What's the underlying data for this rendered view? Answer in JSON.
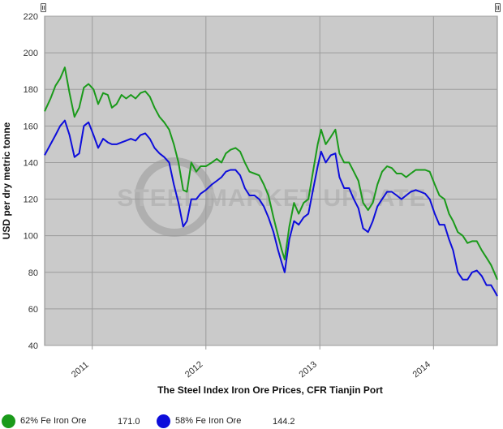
{
  "chart_data": {
    "type": "line",
    "title": "The Steel Index Iron Ore Prices, CFR Tianjin Port",
    "ylabel": "USD per dry metric tonne",
    "xlabel": "The Steel Index Iron Ore Prices, CFR Tianjin Port",
    "ylim": [
      40,
      220
    ],
    "yticks": [
      40,
      60,
      80,
      100,
      120,
      140,
      160,
      180,
      200,
      220
    ],
    "xlim": [
      "2010-08-01",
      "2014-07-25"
    ],
    "xticks": [
      {
        "label": "2011",
        "date": "2011-01-01"
      },
      {
        "label": "2012",
        "date": "2012-01-01"
      },
      {
        "label": "2013",
        "date": "2013-01-01"
      },
      {
        "label": "2014",
        "date": "2014-01-01"
      }
    ],
    "grid": true,
    "legend_placement": "bottom",
    "watermark": "STEEL MARKET UPDATE",
    "series": [
      {
        "name": "62% Fe Iron Ore",
        "color": "#1a9a1a",
        "legend_value": "171.0",
        "points": [
          [
            "2010-08-01",
            168
          ],
          [
            "2010-08-20",
            175
          ],
          [
            "2010-09-05",
            182
          ],
          [
            "2010-09-20",
            186
          ],
          [
            "2010-10-05",
            192
          ],
          [
            "2010-10-20",
            178
          ],
          [
            "2010-11-05",
            165
          ],
          [
            "2010-11-20",
            170
          ],
          [
            "2010-12-05",
            181
          ],
          [
            "2010-12-20",
            183
          ],
          [
            "2011-01-05",
            180
          ],
          [
            "2011-01-20",
            172
          ],
          [
            "2011-02-05",
            178
          ],
          [
            "2011-02-20",
            177
          ],
          [
            "2011-03-05",
            170
          ],
          [
            "2011-03-20",
            172
          ],
          [
            "2011-04-05",
            177
          ],
          [
            "2011-04-20",
            175
          ],
          [
            "2011-05-05",
            177
          ],
          [
            "2011-05-20",
            175
          ],
          [
            "2011-06-05",
            178
          ],
          [
            "2011-06-20",
            179
          ],
          [
            "2011-07-05",
            176
          ],
          [
            "2011-07-20",
            170
          ],
          [
            "2011-08-05",
            165
          ],
          [
            "2011-08-20",
            162
          ],
          [
            "2011-09-05",
            158
          ],
          [
            "2011-09-20",
            150
          ],
          [
            "2011-10-05",
            140
          ],
          [
            "2011-10-20",
            125
          ],
          [
            "2011-11-01",
            124
          ],
          [
            "2011-11-15",
            140
          ],
          [
            "2011-12-01",
            135
          ],
          [
            "2011-12-15",
            138
          ],
          [
            "2012-01-01",
            138
          ],
          [
            "2012-01-20",
            140
          ],
          [
            "2012-02-05",
            142
          ],
          [
            "2012-02-20",
            140
          ],
          [
            "2012-03-05",
            145
          ],
          [
            "2012-03-20",
            147
          ],
          [
            "2012-04-05",
            148
          ],
          [
            "2012-04-20",
            146
          ],
          [
            "2012-05-05",
            140
          ],
          [
            "2012-05-20",
            135
          ],
          [
            "2012-06-05",
            134
          ],
          [
            "2012-06-20",
            133
          ],
          [
            "2012-07-05",
            128
          ],
          [
            "2012-07-20",
            122
          ],
          [
            "2012-08-05",
            110
          ],
          [
            "2012-08-20",
            100
          ],
          [
            "2012-09-01",
            92
          ],
          [
            "2012-09-10",
            87
          ],
          [
            "2012-09-25",
            105
          ],
          [
            "2012-10-10",
            118
          ],
          [
            "2012-10-25",
            112
          ],
          [
            "2012-11-10",
            118
          ],
          [
            "2012-11-25",
            120
          ],
          [
            "2012-12-10",
            135
          ],
          [
            "2012-12-25",
            150
          ],
          [
            "2013-01-05",
            158
          ],
          [
            "2013-01-20",
            150
          ],
          [
            "2013-02-05",
            154
          ],
          [
            "2013-02-20",
            158
          ],
          [
            "2013-03-05",
            145
          ],
          [
            "2013-03-20",
            140
          ],
          [
            "2013-04-05",
            140
          ],
          [
            "2013-04-20",
            135
          ],
          [
            "2013-05-05",
            130
          ],
          [
            "2013-05-20",
            118
          ],
          [
            "2013-06-05",
            114
          ],
          [
            "2013-06-20",
            118
          ],
          [
            "2013-07-05",
            128
          ],
          [
            "2013-07-20",
            135
          ],
          [
            "2013-08-05",
            138
          ],
          [
            "2013-08-20",
            137
          ],
          [
            "2013-09-05",
            134
          ],
          [
            "2013-09-20",
            134
          ],
          [
            "2013-10-05",
            132
          ],
          [
            "2013-10-20",
            134
          ],
          [
            "2013-11-05",
            136
          ],
          [
            "2013-11-20",
            136
          ],
          [
            "2013-12-05",
            136
          ],
          [
            "2013-12-20",
            135
          ],
          [
            "2014-01-05",
            128
          ],
          [
            "2014-01-20",
            122
          ],
          [
            "2014-02-05",
            120
          ],
          [
            "2014-02-20",
            112
          ],
          [
            "2014-03-05",
            108
          ],
          [
            "2014-03-20",
            102
          ],
          [
            "2014-04-05",
            100
          ],
          [
            "2014-04-20",
            96
          ],
          [
            "2014-05-05",
            97
          ],
          [
            "2014-05-20",
            97
          ],
          [
            "2014-06-05",
            92
          ],
          [
            "2014-06-20",
            88
          ],
          [
            "2014-07-05",
            84
          ],
          [
            "2014-07-15",
            80
          ],
          [
            "2014-07-25",
            76
          ]
        ]
      },
      {
        "name": "58% Fe Iron Ore",
        "color": "#0d0ddb",
        "legend_value": "144.2",
        "points": [
          [
            "2010-08-01",
            144
          ],
          [
            "2010-08-20",
            150
          ],
          [
            "2010-09-05",
            155
          ],
          [
            "2010-09-20",
            160
          ],
          [
            "2010-10-05",
            163
          ],
          [
            "2010-10-20",
            155
          ],
          [
            "2010-11-05",
            143
          ],
          [
            "2010-11-20",
            145
          ],
          [
            "2010-12-05",
            160
          ],
          [
            "2010-12-20",
            162
          ],
          [
            "2011-01-05",
            155
          ],
          [
            "2011-01-20",
            148
          ],
          [
            "2011-02-05",
            153
          ],
          [
            "2011-02-20",
            151
          ],
          [
            "2011-03-05",
            150
          ],
          [
            "2011-03-20",
            150
          ],
          [
            "2011-04-05",
            151
          ],
          [
            "2011-04-20",
            152
          ],
          [
            "2011-05-05",
            153
          ],
          [
            "2011-05-20",
            152
          ],
          [
            "2011-06-05",
            155
          ],
          [
            "2011-06-20",
            156
          ],
          [
            "2011-07-05",
            153
          ],
          [
            "2011-07-20",
            148
          ],
          [
            "2011-08-05",
            145
          ],
          [
            "2011-08-20",
            143
          ],
          [
            "2011-09-05",
            140
          ],
          [
            "2011-09-20",
            128
          ],
          [
            "2011-10-05",
            118
          ],
          [
            "2011-10-20",
            105
          ],
          [
            "2011-11-01",
            108
          ],
          [
            "2011-11-15",
            120
          ],
          [
            "2011-12-01",
            120
          ],
          [
            "2011-12-15",
            123
          ],
          [
            "2012-01-01",
            125
          ],
          [
            "2012-01-20",
            128
          ],
          [
            "2012-02-05",
            130
          ],
          [
            "2012-02-20",
            132
          ],
          [
            "2012-03-05",
            135
          ],
          [
            "2012-03-20",
            136
          ],
          [
            "2012-04-05",
            136
          ],
          [
            "2012-04-20",
            133
          ],
          [
            "2012-05-05",
            126
          ],
          [
            "2012-05-20",
            122
          ],
          [
            "2012-06-05",
            122
          ],
          [
            "2012-06-20",
            120
          ],
          [
            "2012-07-05",
            116
          ],
          [
            "2012-07-20",
            110
          ],
          [
            "2012-08-05",
            102
          ],
          [
            "2012-08-20",
            92
          ],
          [
            "2012-09-01",
            85
          ],
          [
            "2012-09-10",
            80
          ],
          [
            "2012-09-25",
            98
          ],
          [
            "2012-10-10",
            108
          ],
          [
            "2012-10-25",
            106
          ],
          [
            "2012-11-10",
            110
          ],
          [
            "2012-11-25",
            112
          ],
          [
            "2012-12-10",
            125
          ],
          [
            "2012-12-25",
            138
          ],
          [
            "2013-01-05",
            146
          ],
          [
            "2013-01-20",
            140
          ],
          [
            "2013-02-05",
            144
          ],
          [
            "2013-02-20",
            145
          ],
          [
            "2013-03-05",
            132
          ],
          [
            "2013-03-20",
            126
          ],
          [
            "2013-04-05",
            126
          ],
          [
            "2013-04-20",
            120
          ],
          [
            "2013-05-05",
            115
          ],
          [
            "2013-05-20",
            104
          ],
          [
            "2013-06-05",
            102
          ],
          [
            "2013-06-20",
            108
          ],
          [
            "2013-07-05",
            116
          ],
          [
            "2013-07-20",
            120
          ],
          [
            "2013-08-05",
            124
          ],
          [
            "2013-08-20",
            124
          ],
          [
            "2013-09-05",
            122
          ],
          [
            "2013-09-20",
            120
          ],
          [
            "2013-10-05",
            122
          ],
          [
            "2013-10-20",
            124
          ],
          [
            "2013-11-05",
            125
          ],
          [
            "2013-11-20",
            124
          ],
          [
            "2013-12-05",
            123
          ],
          [
            "2013-12-20",
            120
          ],
          [
            "2014-01-05",
            112
          ],
          [
            "2014-01-20",
            106
          ],
          [
            "2014-02-05",
            106
          ],
          [
            "2014-02-20",
            98
          ],
          [
            "2014-03-05",
            92
          ],
          [
            "2014-03-20",
            80
          ],
          [
            "2014-04-05",
            76
          ],
          [
            "2014-04-20",
            76
          ],
          [
            "2014-05-05",
            80
          ],
          [
            "2014-05-20",
            81
          ],
          [
            "2014-06-05",
            78
          ],
          [
            "2014-06-20",
            73
          ],
          [
            "2014-07-05",
            73
          ],
          [
            "2014-07-15",
            70
          ],
          [
            "2014-07-25",
            67
          ]
        ]
      }
    ]
  }
}
